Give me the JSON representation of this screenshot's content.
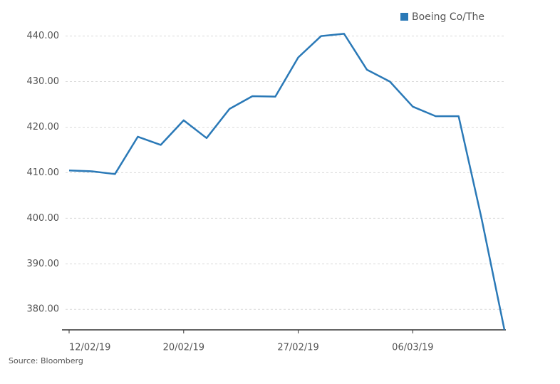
{
  "chart_data": {
    "type": "line",
    "categories": [
      "12/02/19",
      null,
      null,
      null,
      null,
      "20/02/19",
      null,
      null,
      null,
      null,
      "27/02/19",
      null,
      null,
      null,
      null,
      "06/03/19",
      null,
      null,
      null,
      null
    ],
    "series": [
      {
        "name": "Boeing Co/The",
        "color": "#2a79b7",
        "values": [
          410.5,
          410.3,
          409.7,
          417.9,
          416.1,
          421.5,
          417.6,
          424.0,
          426.8,
          426.7,
          435.3,
          440.0,
          440.5,
          432.6,
          430.0,
          424.5,
          422.4,
          422.4,
          400.0,
          375.5
        ]
      }
    ],
    "ylim": [
      375.5,
      444
    ],
    "yticks": [
      {
        "value": 380,
        "label": "380.00"
      },
      {
        "value": 390,
        "label": "390.00"
      },
      {
        "value": 400,
        "label": "400.00"
      },
      {
        "value": 410,
        "label": "410.00"
      },
      {
        "value": 420,
        "label": "420.00"
      },
      {
        "value": 430,
        "label": "430.00"
      },
      {
        "value": 440,
        "label": "440.00"
      }
    ],
    "grid": true,
    "legend": "top-right",
    "source": "Source: Bloomberg"
  }
}
